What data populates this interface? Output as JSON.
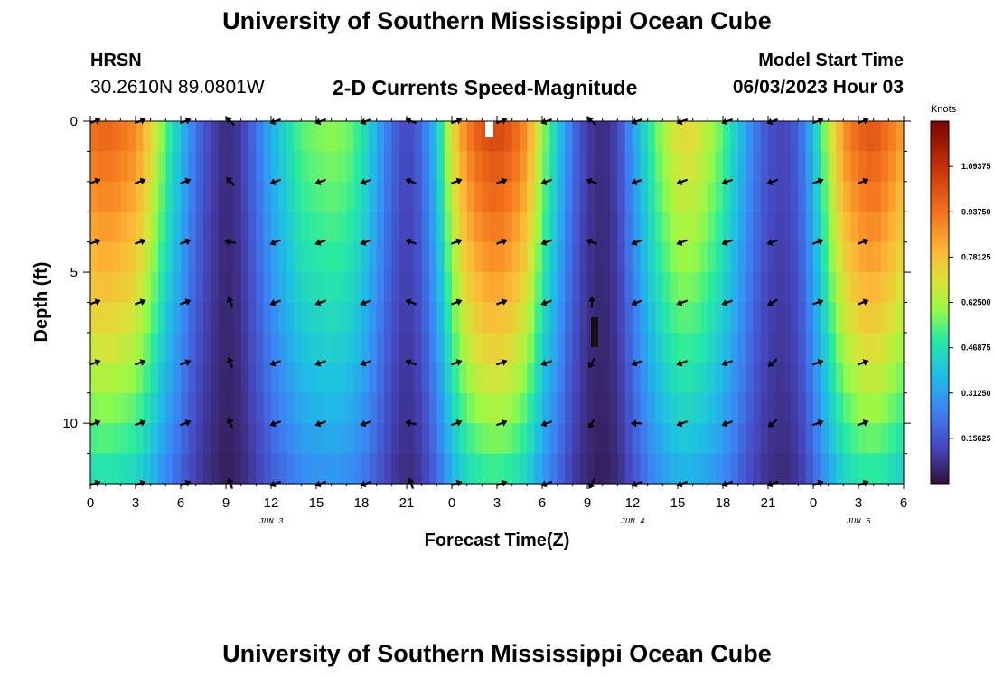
{
  "page": {
    "title": "University of Southern Mississippi Ocean Cube",
    "footer_title": "University of Southern Mississippi Ocean Cube",
    "station": "HRSN",
    "coordinates": "30.2610N  89.0801W",
    "subtitle": "2-D Currents Speed-Magnitude",
    "model_start_label": "Model Start Time",
    "model_start_value": "06/03/2023 Hour 03"
  },
  "chart_data": {
    "type": "heatmap",
    "title": "2-D Currents Speed-Magnitude",
    "xlabel": "Forecast Time(Z)",
    "ylabel": "Depth (ft)",
    "x_range_hours": [
      0,
      54
    ],
    "y_range_ft": [
      0,
      12
    ],
    "x_ticks": [
      {
        "hour": 0,
        "label": "0"
      },
      {
        "hour": 3,
        "label": "3"
      },
      {
        "hour": 6,
        "label": "6"
      },
      {
        "hour": 9,
        "label": "9"
      },
      {
        "hour": 12,
        "label": "12"
      },
      {
        "hour": 15,
        "label": "15"
      },
      {
        "hour": 18,
        "label": "18"
      },
      {
        "hour": 21,
        "label": "21"
      },
      {
        "hour": 24,
        "label": "0"
      },
      {
        "hour": 27,
        "label": "3"
      },
      {
        "hour": 30,
        "label": "6"
      },
      {
        "hour": 33,
        "label": "9"
      },
      {
        "hour": 36,
        "label": "12"
      },
      {
        "hour": 39,
        "label": "15"
      },
      {
        "hour": 42,
        "label": "18"
      },
      {
        "hour": 45,
        "label": "21"
      },
      {
        "hour": 48,
        "label": "0"
      },
      {
        "hour": 51,
        "label": "3"
      },
      {
        "hour": 54,
        "label": "6"
      }
    ],
    "y_ticks": [
      {
        "depth": 0,
        "label": "0"
      },
      {
        "depth": 5,
        "label": "5"
      },
      {
        "depth": 10,
        "label": "10"
      }
    ],
    "date_labels": [
      {
        "hour": 12,
        "label": "JUN 3"
      },
      {
        "hour": 36,
        "label": "JUN 4"
      },
      {
        "hour": 51,
        "label": "JUN 5"
      }
    ],
    "colorbar": {
      "unit": "Knots",
      "min": 0,
      "max": 1.25,
      "ticks": [
        "1.09375",
        "0.93750",
        "0.78125",
        "0.62500",
        "0.46875",
        "0.31250",
        "0.15625"
      ],
      "tick_values": [
        1.09375,
        0.9375,
        0.78125,
        0.625,
        0.46875,
        0.3125,
        0.15625
      ]
    },
    "speed_profile": {
      "hours": [
        0,
        1,
        2,
        3,
        4,
        5,
        6,
        7,
        8,
        9,
        10,
        11,
        12,
        13,
        14,
        15,
        16,
        17,
        18,
        19,
        20,
        21,
        22,
        23,
        24,
        25,
        26,
        27,
        28,
        29,
        30,
        31,
        32,
        33,
        34,
        35,
        36,
        37,
        38,
        39,
        40,
        41,
        42,
        43,
        44,
        45,
        46,
        47,
        48,
        49,
        50,
        51,
        52,
        53,
        54
      ],
      "surface_knots": [
        0.95,
        0.98,
        0.95,
        0.9,
        0.75,
        0.55,
        0.38,
        0.22,
        0.12,
        0.06,
        0.1,
        0.22,
        0.35,
        0.45,
        0.55,
        0.58,
        0.6,
        0.58,
        0.5,
        0.35,
        0.2,
        0.12,
        0.2,
        0.4,
        0.72,
        0.92,
        1.02,
        1.05,
        1.0,
        0.88,
        0.62,
        0.42,
        0.22,
        0.1,
        0.06,
        0.12,
        0.3,
        0.48,
        0.62,
        0.72,
        0.72,
        0.65,
        0.55,
        0.4,
        0.25,
        0.15,
        0.12,
        0.18,
        0.38,
        0.65,
        0.88,
        0.98,
        1.02,
        0.95,
        0.85
      ]
    },
    "current_vectors": {
      "depth_rows_ft": [
        0,
        2,
        4,
        6,
        8,
        10,
        12
      ],
      "hours": [
        0,
        3,
        6,
        9,
        12,
        15,
        18,
        21,
        24,
        27,
        30,
        33,
        36,
        39,
        42,
        45,
        48,
        51
      ],
      "direction_deg": [
        [
          20,
          20,
          20,
          135,
          200,
          200,
          200,
          160,
          20,
          20,
          200,
          135,
          200,
          200,
          200,
          200,
          20,
          20
        ],
        [
          20,
          20,
          20,
          135,
          200,
          200,
          200,
          160,
          20,
          20,
          200,
          160,
          200,
          200,
          200,
          200,
          20,
          20
        ],
        [
          20,
          20,
          20,
          170,
          200,
          200,
          200,
          160,
          20,
          20,
          200,
          160,
          200,
          200,
          200,
          200,
          20,
          20
        ],
        [
          20,
          20,
          20,
          110,
          200,
          200,
          200,
          160,
          20,
          20,
          200,
          90,
          200,
          200,
          200,
          210,
          20,
          20
        ],
        [
          20,
          20,
          20,
          110,
          200,
          200,
          200,
          160,
          20,
          20,
          200,
          240,
          200,
          200,
          200,
          220,
          20,
          20
        ],
        [
          20,
          20,
          20,
          110,
          200,
          200,
          200,
          170,
          20,
          20,
          200,
          240,
          180,
          200,
          200,
          220,
          20,
          20
        ],
        [
          20,
          20,
          20,
          110,
          200,
          200,
          200,
          110,
          20,
          20,
          200,
          240,
          200,
          200,
          200,
          200,
          20,
          20
        ]
      ]
    }
  }
}
